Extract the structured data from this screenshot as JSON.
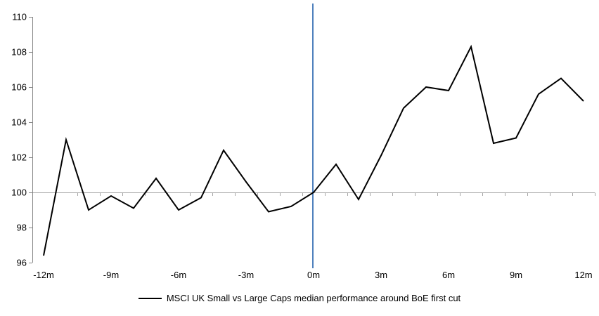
{
  "page": {
    "background": "#ffffff"
  },
  "legend": {
    "label": "MSCI UK Small vs Large Caps median performance around BoE first cut"
  },
  "chart_data": {
    "type": "line",
    "title": "",
    "xlabel": "",
    "ylabel": "",
    "x_months": [
      -12,
      -11,
      -10,
      -9,
      -8,
      -7,
      -6,
      -5,
      -4,
      -3,
      -2,
      -1,
      0,
      1,
      2,
      3,
      4,
      5,
      6,
      7,
      8,
      9,
      10,
      11,
      12
    ],
    "series": [
      {
        "name": "MSCI UK Small vs Large Caps median performance around BoE first cut",
        "color": "#000000",
        "values": [
          96.4,
          103.0,
          99.0,
          99.8,
          99.1,
          100.8,
          99.0,
          99.7,
          102.4,
          100.6,
          98.9,
          99.2,
          100.0,
          101.6,
          99.6,
          102.1,
          104.8,
          106.0,
          105.8,
          108.3,
          102.8,
          103.1,
          105.6,
          106.5,
          105.2
        ]
      }
    ],
    "ylim": [
      96,
      110
    ],
    "y_ticks": [
      110,
      108,
      106,
      104,
      102,
      100,
      98,
      96
    ],
    "x_axis": {
      "tick_label_positions": [
        -12,
        -9,
        -6,
        -3,
        0,
        3,
        6,
        9,
        12
      ],
      "tick_labels": [
        "-12m",
        "-9m",
        "-6m",
        "-3m",
        "0m",
        "3m",
        "6m",
        "9m",
        "12m"
      ]
    },
    "reference_lines": {
      "horizontal_at_value": 100,
      "vertical_at_month": 0
    },
    "colors": {
      "series": "#000000",
      "event_line": "#4F81BD",
      "baseline": "#A6A6A6",
      "axis": "#868686",
      "text": "#000000"
    },
    "grid": "single horizontal line at 100 only",
    "legend_position": "bottom-center"
  }
}
